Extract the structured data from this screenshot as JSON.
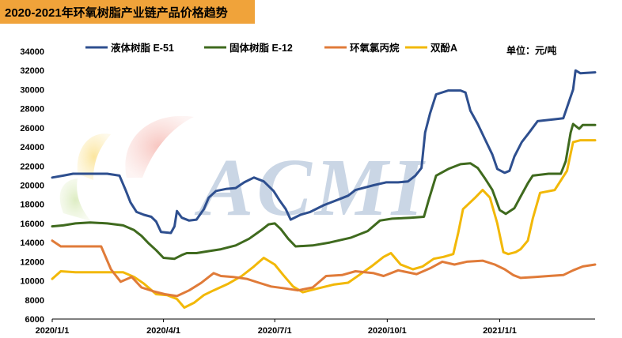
{
  "title": "2020-2021年环氧树脂产业链产品价格趋势",
  "unit_label": "单位：元/吨",
  "watermark": "ACMI",
  "chart_data": {
    "type": "line",
    "title": "2020-2021年环氧树脂产业链产品价格趋势",
    "xlabel": "",
    "ylabel": "",
    "ylim": [
      6000,
      34000
    ],
    "yticks": [
      6000,
      8000,
      10000,
      12000,
      14000,
      16000,
      18000,
      20000,
      22000,
      24000,
      26000,
      28000,
      30000,
      32000,
      34000
    ],
    "xticks": [
      "2020/1/1",
      "2020/4/1",
      "2020/7/1",
      "2020/10/1",
      "2021/1/1"
    ],
    "x_range": [
      "2020-01-01",
      "2021-03-20"
    ],
    "legend_position": "top",
    "grid": false,
    "series": [
      {
        "name": "液体树脂 E-51",
        "color": "#2e4f8f",
        "points": [
          [
            "2020-01-01",
            20800
          ],
          [
            "2020-01-10",
            21000
          ],
          [
            "2020-01-18",
            21200
          ],
          [
            "2020-02-01",
            21200
          ],
          [
            "2020-02-15",
            21200
          ],
          [
            "2020-02-25",
            21000
          ],
          [
            "2020-03-01",
            19500
          ],
          [
            "2020-03-05",
            18200
          ],
          [
            "2020-03-10",
            17200
          ],
          [
            "2020-03-16",
            16900
          ],
          [
            "2020-03-22",
            16700
          ],
          [
            "2020-03-26",
            16200
          ],
          [
            "2020-03-30",
            15100
          ],
          [
            "2020-04-07",
            15000
          ],
          [
            "2020-04-10",
            15700
          ],
          [
            "2020-04-12",
            17300
          ],
          [
            "2020-04-16",
            16600
          ],
          [
            "2020-04-22",
            16300
          ],
          [
            "2020-04-28",
            16400
          ],
          [
            "2020-05-04",
            17500
          ],
          [
            "2020-05-08",
            18700
          ],
          [
            "2020-05-14",
            19400
          ],
          [
            "2020-05-22",
            19600
          ],
          [
            "2020-05-30",
            19700
          ],
          [
            "2020-06-06",
            20300
          ],
          [
            "2020-06-14",
            20800
          ],
          [
            "2020-06-22",
            20400
          ],
          [
            "2020-06-30",
            19400
          ],
          [
            "2020-07-05",
            18400
          ],
          [
            "2020-07-10",
            17500
          ],
          [
            "2020-07-14",
            16400
          ],
          [
            "2020-07-22",
            16900
          ],
          [
            "2020-07-30",
            17200
          ],
          [
            "2020-08-10",
            17900
          ],
          [
            "2020-08-22",
            18500
          ],
          [
            "2020-08-30",
            18900
          ],
          [
            "2020-09-05",
            19500
          ],
          [
            "2020-09-20",
            20000
          ],
          [
            "2020-09-30",
            20300
          ],
          [
            "2020-10-10",
            20300
          ],
          [
            "2020-10-18",
            20400
          ],
          [
            "2020-10-24",
            21000
          ],
          [
            "2020-10-29",
            21800
          ],
          [
            "2020-11-01",
            25500
          ],
          [
            "2020-11-05",
            27500
          ],
          [
            "2020-11-10",
            29500
          ],
          [
            "2020-11-20",
            29900
          ],
          [
            "2020-11-30",
            29900
          ],
          [
            "2020-12-04",
            29700
          ],
          [
            "2020-12-08",
            27800
          ],
          [
            "2020-12-14",
            26400
          ],
          [
            "2020-12-20",
            24800
          ],
          [
            "2020-12-26",
            23200
          ],
          [
            "2020-12-30",
            21700
          ],
          [
            "2021-01-05",
            21300
          ],
          [
            "2021-01-09",
            21500
          ],
          [
            "2021-01-13",
            23000
          ],
          [
            "2021-01-19",
            24500
          ],
          [
            "2021-01-25",
            25500
          ],
          [
            "2021-02-01",
            26700
          ],
          [
            "2021-02-15",
            26900
          ],
          [
            "2021-02-22",
            27000
          ],
          [
            "2021-02-26",
            28500
          ],
          [
            "2021-03-02",
            30000
          ],
          [
            "2021-03-04",
            32000
          ],
          [
            "2021-03-08",
            31700
          ],
          [
            "2021-03-20",
            31800
          ]
        ]
      },
      {
        "name": "固体树脂 E-12",
        "color": "#3f6a1e",
        "points": [
          [
            "2020-01-01",
            15700
          ],
          [
            "2020-01-10",
            15800
          ],
          [
            "2020-01-20",
            16000
          ],
          [
            "2020-02-01",
            16100
          ],
          [
            "2020-02-15",
            16000
          ],
          [
            "2020-02-28",
            15800
          ],
          [
            "2020-03-08",
            15300
          ],
          [
            "2020-03-14",
            14700
          ],
          [
            "2020-03-20",
            13900
          ],
          [
            "2020-03-26",
            13200
          ],
          [
            "2020-04-01",
            12400
          ],
          [
            "2020-04-10",
            12300
          ],
          [
            "2020-04-16",
            12700
          ],
          [
            "2020-04-20",
            12900
          ],
          [
            "2020-04-28",
            12900
          ],
          [
            "2020-05-08",
            13100
          ],
          [
            "2020-05-18",
            13300
          ],
          [
            "2020-05-30",
            13700
          ],
          [
            "2020-06-10",
            14400
          ],
          [
            "2020-06-20",
            15300
          ],
          [
            "2020-06-26",
            15900
          ],
          [
            "2020-07-01",
            16000
          ],
          [
            "2020-07-06",
            15400
          ],
          [
            "2020-07-12",
            14400
          ],
          [
            "2020-07-18",
            13600
          ],
          [
            "2020-08-01",
            13700
          ],
          [
            "2020-08-15",
            14000
          ],
          [
            "2020-09-01",
            14500
          ],
          [
            "2020-09-15",
            15200
          ],
          [
            "2020-09-25",
            16300
          ],
          [
            "2020-10-05",
            16500
          ],
          [
            "2020-10-20",
            16600
          ],
          [
            "2020-10-31",
            16700
          ],
          [
            "2020-11-04",
            18500
          ],
          [
            "2020-11-10",
            21000
          ],
          [
            "2020-11-20",
            21700
          ],
          [
            "2020-11-30",
            22200
          ],
          [
            "2020-12-08",
            22300
          ],
          [
            "2020-12-14",
            21800
          ],
          [
            "2020-12-20",
            20700
          ],
          [
            "2020-12-26",
            19500
          ],
          [
            "2021-01-01",
            17400
          ],
          [
            "2021-01-06",
            17000
          ],
          [
            "2021-01-13",
            17600
          ],
          [
            "2021-01-18",
            18800
          ],
          [
            "2021-01-24",
            20200
          ],
          [
            "2021-01-28",
            21000
          ],
          [
            "2021-02-10",
            21200
          ],
          [
            "2021-02-20",
            21200
          ],
          [
            "2021-02-24",
            22500
          ],
          [
            "2021-02-28",
            25500
          ],
          [
            "2021-03-02",
            26400
          ],
          [
            "2021-03-07",
            25900
          ],
          [
            "2021-03-10",
            26300
          ],
          [
            "2021-03-20",
            26300
          ]
        ]
      },
      {
        "name": "环氧氯丙烷",
        "color": "#e07b39",
        "points": [
          [
            "2020-01-01",
            14200
          ],
          [
            "2020-01-08",
            13600
          ],
          [
            "2020-01-20",
            13600
          ],
          [
            "2020-02-10",
            13600
          ],
          [
            "2020-02-18",
            11200
          ],
          [
            "2020-02-26",
            9900
          ],
          [
            "2020-03-06",
            10400
          ],
          [
            "2020-03-14",
            9300
          ],
          [
            "2020-03-24",
            8900
          ],
          [
            "2020-04-02",
            8600
          ],
          [
            "2020-04-12",
            8400
          ],
          [
            "2020-04-22",
            9000
          ],
          [
            "2020-05-02",
            9800
          ],
          [
            "2020-05-12",
            10800
          ],
          [
            "2020-05-18",
            10500
          ],
          [
            "2020-05-28",
            10400
          ],
          [
            "2020-06-08",
            10200
          ],
          [
            "2020-06-18",
            9800
          ],
          [
            "2020-06-28",
            9400
          ],
          [
            "2020-07-10",
            9200
          ],
          [
            "2020-07-20",
            9000
          ],
          [
            "2020-08-01",
            9300
          ],
          [
            "2020-08-12",
            10500
          ],
          [
            "2020-08-25",
            10600
          ],
          [
            "2020-09-05",
            11000
          ],
          [
            "2020-09-20",
            10800
          ],
          [
            "2020-09-28",
            10500
          ],
          [
            "2020-10-10",
            11100
          ],
          [
            "2020-10-25",
            10700
          ],
          [
            "2020-11-05",
            11300
          ],
          [
            "2020-11-15",
            12000
          ],
          [
            "2020-11-25",
            11700
          ],
          [
            "2020-12-05",
            12000
          ],
          [
            "2020-12-18",
            12100
          ],
          [
            "2020-12-28",
            11700
          ],
          [
            "2021-01-05",
            11200
          ],
          [
            "2021-01-12",
            10600
          ],
          [
            "2021-01-18",
            10300
          ],
          [
            "2021-01-30",
            10400
          ],
          [
            "2021-02-10",
            10500
          ],
          [
            "2021-02-22",
            10600
          ],
          [
            "2021-03-02",
            11100
          ],
          [
            "2021-03-10",
            11500
          ],
          [
            "2021-03-20",
            11700
          ]
        ]
      },
      {
        "name": "双酚A",
        "color": "#f2b807",
        "points": [
          [
            "2020-01-01",
            10200
          ],
          [
            "2020-01-08",
            11000
          ],
          [
            "2020-01-20",
            10900
          ],
          [
            "2020-02-10",
            10900
          ],
          [
            "2020-02-28",
            10900
          ],
          [
            "2020-03-08",
            10400
          ],
          [
            "2020-03-16",
            9700
          ],
          [
            "2020-03-26",
            8600
          ],
          [
            "2020-04-04",
            8500
          ],
          [
            "2020-04-12",
            8100
          ],
          [
            "2020-04-18",
            7200
          ],
          [
            "2020-04-26",
            7700
          ],
          [
            "2020-05-04",
            8500
          ],
          [
            "2020-05-12",
            9000
          ],
          [
            "2020-05-24",
            9700
          ],
          [
            "2020-06-04",
            10500
          ],
          [
            "2020-06-14",
            11500
          ],
          [
            "2020-06-22",
            12400
          ],
          [
            "2020-07-01",
            11700
          ],
          [
            "2020-07-08",
            10600
          ],
          [
            "2020-07-16",
            9400
          ],
          [
            "2020-07-24",
            8800
          ],
          [
            "2020-08-05",
            9200
          ],
          [
            "2020-08-18",
            9600
          ],
          [
            "2020-08-30",
            9800
          ],
          [
            "2020-09-08",
            10600
          ],
          [
            "2020-09-18",
            11500
          ],
          [
            "2020-09-28",
            12500
          ],
          [
            "2020-10-04",
            12900
          ],
          [
            "2020-10-12",
            11700
          ],
          [
            "2020-10-22",
            11200
          ],
          [
            "2020-10-30",
            11500
          ],
          [
            "2020-11-08",
            12300
          ],
          [
            "2020-11-16",
            12500
          ],
          [
            "2020-11-24",
            12800
          ],
          [
            "2020-11-28",
            15000
          ],
          [
            "2020-12-02",
            17500
          ],
          [
            "2020-12-12",
            18700
          ],
          [
            "2020-12-18",
            19500
          ],
          [
            "2020-12-24",
            18700
          ],
          [
            "2020-12-30",
            16000
          ],
          [
            "2021-01-04",
            13000
          ],
          [
            "2021-01-08",
            12800
          ],
          [
            "2021-01-14",
            13000
          ],
          [
            "2021-01-18",
            13300
          ],
          [
            "2021-01-24",
            14200
          ],
          [
            "2021-01-28",
            16500
          ],
          [
            "2021-02-03",
            19200
          ],
          [
            "2021-02-15",
            19500
          ],
          [
            "2021-02-25",
            21500
          ],
          [
            "2021-03-02",
            24500
          ],
          [
            "2021-03-08",
            24700
          ],
          [
            "2021-03-14",
            24700
          ],
          [
            "2021-03-20",
            24700
          ]
        ]
      }
    ]
  }
}
